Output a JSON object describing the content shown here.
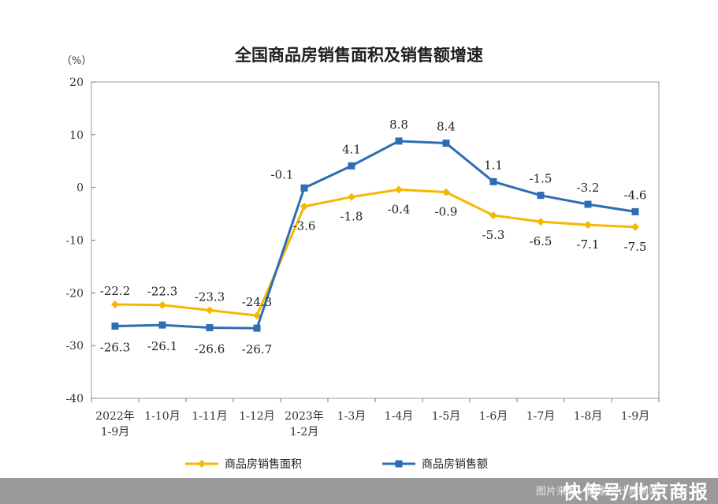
{
  "chart_data": {
    "type": "line",
    "title": "全国商品房销售面积及销售额增速",
    "unit_label": "（%）",
    "ylim": [
      -40,
      20
    ],
    "yticks": [
      20,
      10,
      0,
      -10,
      -20,
      -30,
      -40
    ],
    "categories": [
      [
        "2022年",
        "1-9月"
      ],
      [
        "1-10月"
      ],
      [
        "1-11月"
      ],
      [
        "1-12月"
      ],
      [
        "2023年",
        "1-2月"
      ],
      [
        "1-3月"
      ],
      [
        "1-4月"
      ],
      [
        "1-5月"
      ],
      [
        "1-6月"
      ],
      [
        "1-7月"
      ],
      [
        "1-8月"
      ],
      [
        "1-9月"
      ]
    ],
    "series": [
      {
        "name": "商品房销售面积",
        "color": "#f5b800",
        "marker": "diamond",
        "values": [
          -22.2,
          -22.3,
          -23.3,
          -24.3,
          -3.6,
          -1.8,
          -0.4,
          -0.9,
          -5.3,
          -6.5,
          -7.1,
          -7.5
        ],
        "labels": [
          "-22.2",
          "-22.3",
          "-23.3",
          "-24.3",
          "-3.6",
          "-1.8",
          "-0.4",
          "-0.9",
          "-5.3",
          "-6.5",
          "-7.1",
          "-7.5"
        ]
      },
      {
        "name": "商品房销售额",
        "color": "#2e6db4",
        "marker": "square",
        "values": [
          -26.3,
          -26.1,
          -26.6,
          -26.7,
          -0.1,
          4.1,
          8.8,
          8.4,
          1.1,
          -1.5,
          -3.2,
          -4.6
        ],
        "labels": [
          "-26.3",
          "-26.1",
          "-26.6",
          "-26.7",
          "-0.1",
          "4.1",
          "8.8",
          "8.4",
          "1.1",
          "-1.5",
          "-3.2",
          "-4.6"
        ]
      }
    ],
    "legend": "bottom"
  },
  "footer": {
    "credit": "图片来源：国家统计局网站",
    "brand": "快传号/北京商报"
  }
}
